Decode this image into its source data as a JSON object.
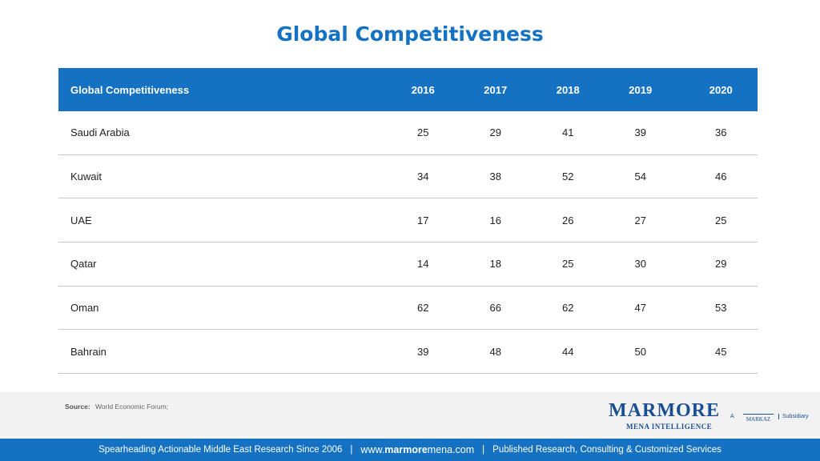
{
  "title": "Global Competitiveness",
  "table": {
    "header": {
      "label": "Global Competitiveness",
      "years": [
        "2016",
        "2017",
        "2018",
        "2019",
        "2020"
      ]
    },
    "rows": [
      {
        "country": "Saudi Arabia",
        "values": [
          "25",
          "29",
          "41",
          "39",
          "36"
        ]
      },
      {
        "country": "Kuwait",
        "values": [
          "34",
          "38",
          "52",
          "54",
          "46"
        ]
      },
      {
        "country": "UAE",
        "values": [
          "17",
          "16",
          "26",
          "27",
          "25"
        ]
      },
      {
        "country": "Qatar",
        "values": [
          "14",
          "18",
          "25",
          "30",
          "29"
        ]
      },
      {
        "country": "Oman",
        "values": [
          "62",
          "66",
          "62",
          "47",
          "53"
        ]
      },
      {
        "country": "Bahrain",
        "values": [
          "39",
          "48",
          "44",
          "50",
          "45"
        ]
      }
    ]
  },
  "source": {
    "label": "Source:",
    "text": "World Economic Forum;"
  },
  "logo": {
    "name": "MARMORE",
    "tagline": "MENA INTELLIGENCE",
    "prefix": "A",
    "parent": "MARKAZ",
    "suffix": "Subsidiary"
  },
  "bottom_bar": {
    "tagline": "Spearheading Actionable Middle East Research Since 2006",
    "separator": "|",
    "website_prefix": "www.",
    "website_bold": "marmore",
    "website_suffix": "mena.com",
    "services": "Published Research, Consulting & Customized Services"
  },
  "colors": {
    "accent": "#1572c2",
    "brand": "#1a4f8f"
  }
}
